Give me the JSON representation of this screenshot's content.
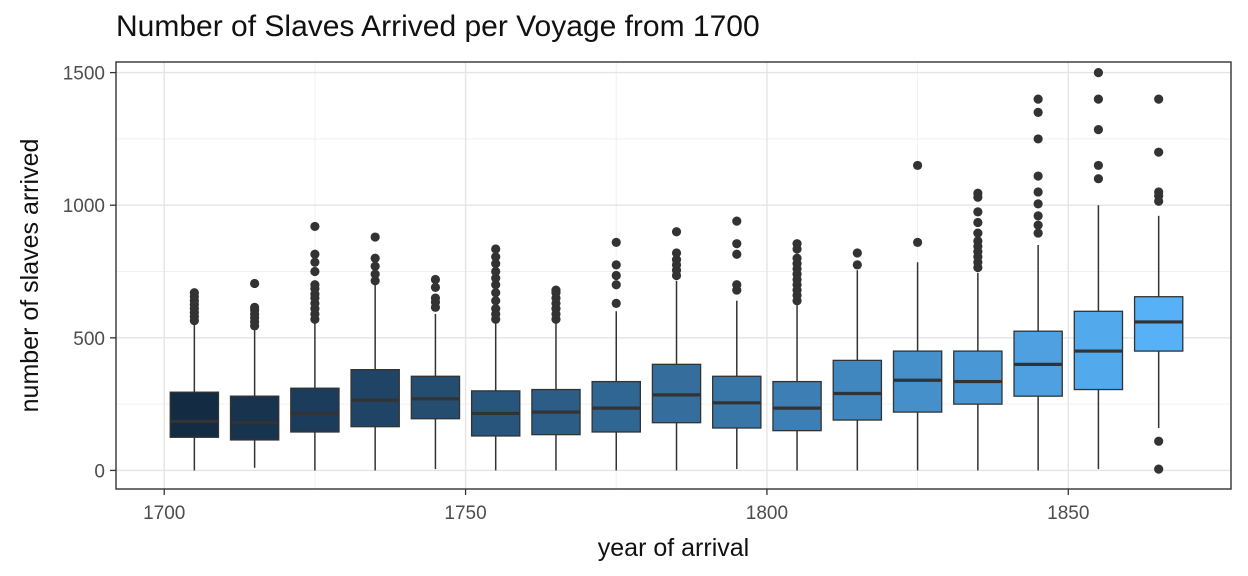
{
  "chart_data": {
    "type": "box",
    "title": "Number of Slaves Arrived per Voyage from 1700",
    "xlabel": "year of arrival",
    "ylabel": "number of slaves arrived",
    "xlim": [
      1692,
      1877
    ],
    "ylim": [
      -70,
      1540
    ],
    "x_ticks": [
      1700,
      1750,
      1800,
      1850
    ],
    "y_ticks": [
      0,
      500,
      1000,
      1500
    ],
    "grid": true,
    "legend": "none",
    "fill_scale": [
      "#132B43",
      "#56B1F7"
    ],
    "boxes": [
      {
        "x": 1705,
        "lower": 0,
        "q1": 125,
        "median": 185,
        "q3": 295,
        "upper": 555,
        "outliers": [
          565,
          580,
          595,
          610,
          625,
          640,
          655,
          670
        ]
      },
      {
        "x": 1715,
        "lower": 10,
        "q1": 115,
        "median": 180,
        "q3": 280,
        "upper": 530,
        "outliers": [
          545,
          560,
          575,
          590,
          605,
          615,
          705
        ]
      },
      {
        "x": 1725,
        "lower": 0,
        "q1": 145,
        "median": 215,
        "q3": 310,
        "upper": 555,
        "outliers": [
          570,
          590,
          610,
          630,
          650,
          665,
          685,
          700,
          750,
          785,
          815,
          920
        ]
      },
      {
        "x": 1735,
        "lower": 0,
        "q1": 165,
        "median": 265,
        "q3": 380,
        "upper": 700,
        "outliers": [
          715,
          740,
          770,
          800,
          880
        ]
      },
      {
        "x": 1745,
        "lower": 5,
        "q1": 195,
        "median": 270,
        "q3": 355,
        "upper": 590,
        "outliers": [
          615,
          635,
          650,
          690,
          720
        ]
      },
      {
        "x": 1755,
        "lower": 0,
        "q1": 130,
        "median": 215,
        "q3": 300,
        "upper": 555,
        "outliers": [
          570,
          590,
          610,
          640,
          670,
          700,
          725,
          750,
          780,
          805,
          835
        ]
      },
      {
        "x": 1765,
        "lower": 0,
        "q1": 135,
        "median": 220,
        "q3": 305,
        "upper": 555,
        "outliers": [
          570,
          590,
          610,
          630,
          650,
          670,
          680
        ]
      },
      {
        "x": 1775,
        "lower": 0,
        "q1": 145,
        "median": 235,
        "q3": 335,
        "upper": 600,
        "outliers": [
          630,
          700,
          735,
          775,
          860
        ]
      },
      {
        "x": 1785,
        "lower": 0,
        "q1": 180,
        "median": 285,
        "q3": 400,
        "upper": 715,
        "outliers": [
          735,
          755,
          775,
          795,
          820,
          900
        ]
      },
      {
        "x": 1795,
        "lower": 5,
        "q1": 160,
        "median": 255,
        "q3": 355,
        "upper": 640,
        "outliers": [
          680,
          700,
          815,
          855,
          940
        ]
      },
      {
        "x": 1805,
        "lower": 0,
        "q1": 150,
        "median": 235,
        "q3": 335,
        "upper": 625,
        "outliers": [
          640,
          660,
          680,
          700,
          720,
          740,
          760,
          780,
          800,
          835,
          855
        ]
      },
      {
        "x": 1815,
        "lower": 0,
        "q1": 190,
        "median": 290,
        "q3": 415,
        "upper": 755,
        "outliers": [
          775,
          820
        ]
      },
      {
        "x": 1825,
        "lower": 0,
        "q1": 220,
        "median": 340,
        "q3": 450,
        "upper": 785,
        "outliers": [
          860,
          1150
        ]
      },
      {
        "x": 1835,
        "lower": 0,
        "q1": 250,
        "median": 335,
        "q3": 450,
        "upper": 745,
        "outliers": [
          765,
          785,
          805,
          825,
          845,
          865,
          895,
          935,
          975,
          1030,
          1045
        ]
      },
      {
        "x": 1845,
        "lower": 0,
        "q1": 280,
        "median": 400,
        "q3": 525,
        "upper": 850,
        "outliers": [
          895,
          925,
          960,
          1005,
          1050,
          1110,
          1250,
          1350,
          1400
        ]
      },
      {
        "x": 1855,
        "lower": 5,
        "q1": 305,
        "median": 450,
        "q3": 600,
        "upper": 1000,
        "outliers": [
          1100,
          1150,
          1285,
          1400,
          1500
        ]
      },
      {
        "x": 1865,
        "lower": 160,
        "q1": 450,
        "median": 560,
        "q3": 655,
        "upper": 960,
        "outliers": [
          5,
          110,
          1015,
          1035,
          1050,
          1200,
          1400
        ]
      }
    ]
  }
}
